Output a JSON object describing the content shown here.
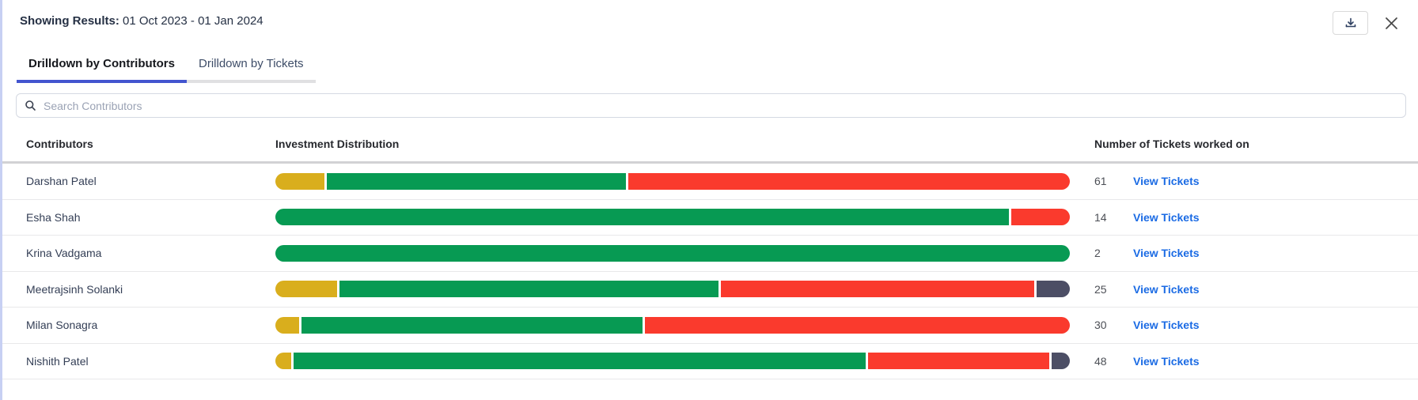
{
  "header": {
    "showing_results_label": "Showing Results:",
    "date_range": " 01 Oct 2023 - 01 Jan 2024"
  },
  "tabs": [
    {
      "label": "Drilldown by Contributors",
      "active": true
    },
    {
      "label": "Drilldown by Tickets",
      "active": false
    }
  ],
  "search": {
    "placeholder": "Search Contributors",
    "value": "",
    "icon": "search-magnifier-icon"
  },
  "table": {
    "columns": [
      "Contributors",
      "Investment Distribution",
      "Number of Tickets worked on"
    ],
    "view_tickets_label": "View Tickets",
    "rows": [
      {
        "name": "Darshan Patel",
        "tickets": "61",
        "segments": [
          {
            "color_key": "yellow",
            "pct": 6.2
          },
          {
            "color_key": "green",
            "pct": 37.9
          },
          {
            "color_key": "red",
            "pct": 55.9
          }
        ]
      },
      {
        "name": "Esha Shah",
        "tickets": "14",
        "segments": [
          {
            "color_key": "green",
            "pct": 92.6
          },
          {
            "color_key": "red",
            "pct": 7.4
          }
        ]
      },
      {
        "name": "Krina Vadgama",
        "tickets": "2",
        "segments": [
          {
            "color_key": "green",
            "pct": 100
          }
        ]
      },
      {
        "name": "Meetrajsinh Solanki",
        "tickets": "25",
        "segments": [
          {
            "color_key": "yellow",
            "pct": 7.8
          },
          {
            "color_key": "green",
            "pct": 48.2
          },
          {
            "color_key": "red",
            "pct": 39.8
          },
          {
            "color_key": "dark",
            "pct": 4.2
          }
        ]
      },
      {
        "name": "Milan Sonagra",
        "tickets": "30",
        "segments": [
          {
            "color_key": "yellow",
            "pct": 3.0
          },
          {
            "color_key": "green",
            "pct": 43.2
          },
          {
            "color_key": "red",
            "pct": 53.8
          }
        ]
      },
      {
        "name": "Nishith Patel",
        "tickets": "48",
        "segments": [
          {
            "color_key": "yellow",
            "pct": 2.0
          },
          {
            "color_key": "green",
            "pct": 72.7
          },
          {
            "color_key": "red",
            "pct": 23.0
          },
          {
            "color_key": "dark",
            "pct": 2.3
          }
        ]
      }
    ]
  },
  "colors": {
    "yellow": "#d9ae1d",
    "green": "#079a53",
    "red": "#fa3a2d",
    "dark": "#4c4e65",
    "link_blue": "#1b6be4",
    "tab_active_underline": "#4355cf",
    "accent_left_border": "#c7d0f3"
  },
  "icons": {
    "download": "download-tray-arrow-icon",
    "close": "close-x-icon"
  }
}
